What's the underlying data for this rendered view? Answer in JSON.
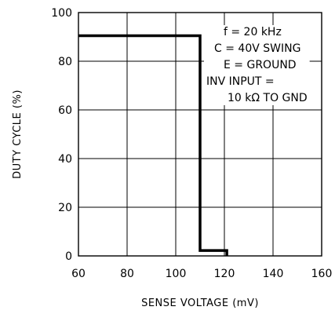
{
  "chart_data": {
    "type": "line",
    "title": "",
    "xlabel": "SENSE VOLTAGE (mV)",
    "ylabel": "DUTY CYCLE (%)",
    "xlim": [
      60,
      160
    ],
    "ylim": [
      0,
      100
    ],
    "x_ticks": [
      60,
      80,
      100,
      120,
      140,
      160
    ],
    "y_ticks": [
      0,
      20,
      40,
      60,
      80,
      100
    ],
    "grid": true,
    "series": [
      {
        "color": "#000000",
        "points": [
          {
            "x": 60,
            "y": 90.5
          },
          {
            "x": 110,
            "y": 90.5
          },
          {
            "x": 110,
            "y": 2.2
          },
          {
            "x": 121,
            "y": 2.2
          },
          {
            "x": 121,
            "y": 0
          }
        ]
      }
    ],
    "annotations": [
      {
        "id": "freq",
        "text": "f = 20 kHz"
      },
      {
        "id": "cap",
        "text": "C = 40V SWING"
      },
      {
        "id": "emitter",
        "text": "E = GROUND"
      },
      {
        "id": "inv",
        "text": "INV INPUT ="
      },
      {
        "id": "res",
        "text": "10 kΩ  TO GND"
      }
    ]
  }
}
